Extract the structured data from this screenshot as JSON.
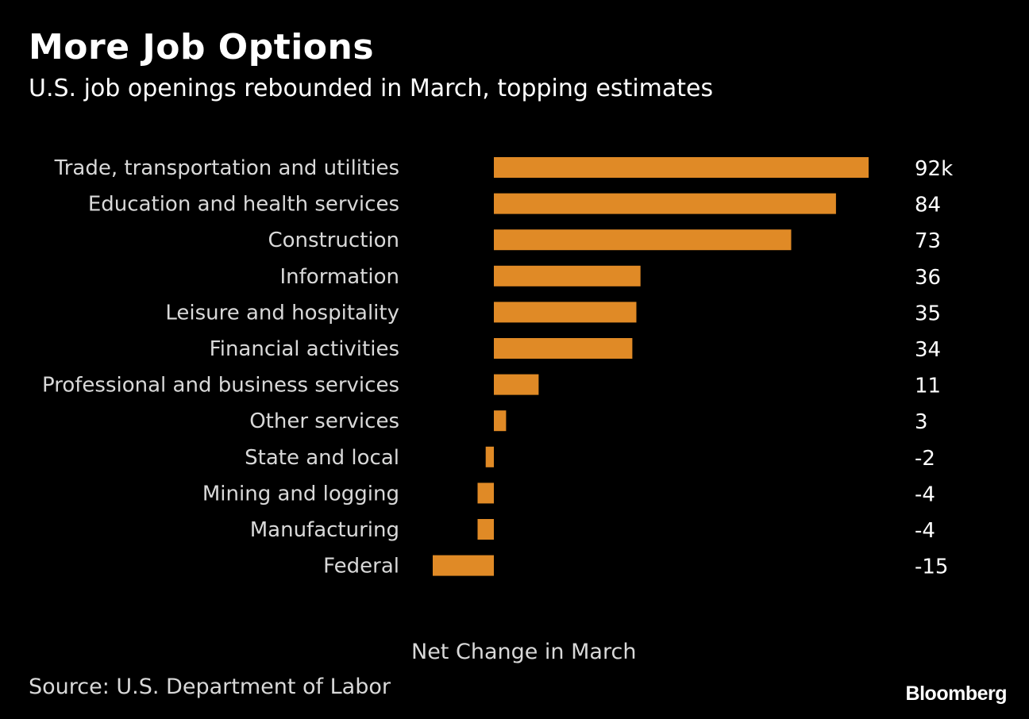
{
  "title": "More Job Options",
  "subtitle": "U.S. job openings rebounded in March, topping estimates",
  "source": "Source: U.S. Department of Labor",
  "brand": "Bloomberg",
  "colors": {
    "background": "#000000",
    "bar": "#e08a26"
  },
  "chart_data": {
    "type": "bar",
    "orientation": "horizontal",
    "categories": [
      "Trade, transportation and utilities",
      "Education and health services",
      "Construction",
      "Information",
      "Leisure and hospitality",
      "Financial activities",
      "Professional and business services",
      "Other services",
      "State and local",
      "Mining and logging",
      "Manufacturing",
      "Federal"
    ],
    "values": [
      92,
      84,
      73,
      36,
      35,
      34,
      11,
      3,
      -2,
      -4,
      -4,
      -15
    ],
    "value_labels": [
      "92k",
      "84",
      "73",
      "36",
      "35",
      "34",
      "11",
      "3",
      "-2",
      "-4",
      "-4",
      "-15"
    ],
    "title": "More Job Options",
    "subtitle": "U.S. job openings rebounded in March, topping estimates",
    "xlabel": "Net Change in March",
    "ylabel": "",
    "xlim": [
      -15,
      92
    ],
    "grid": false,
    "legend": "none"
  }
}
